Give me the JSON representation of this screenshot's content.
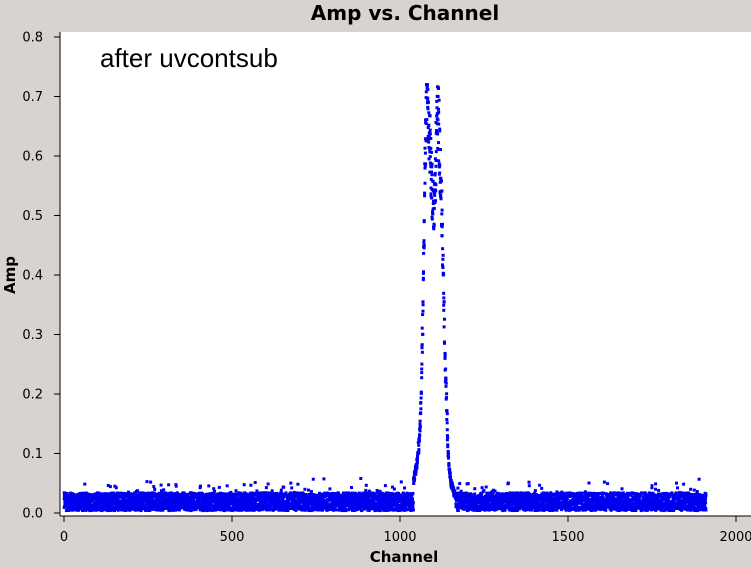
{
  "chart_data": {
    "type": "scatter",
    "title": "Amp vs. Channel",
    "xlabel": "Channel",
    "ylabel": "Amp",
    "annotation": "after uvcontsub",
    "xlim": [
      -10,
      2000
    ],
    "ylim": [
      -0.005,
      0.81
    ],
    "xticks": [
      0,
      500,
      1000,
      1500,
      2000
    ],
    "yticks": [
      0.0,
      0.1,
      0.2,
      0.3,
      0.4,
      0.5,
      0.6,
      0.7,
      0.8
    ],
    "xtick_labels": [
      "0",
      "500",
      "1000",
      "1500",
      "2000"
    ],
    "ytick_labels": [
      "0.0",
      "0.1",
      "0.2",
      "0.3",
      "0.4",
      "0.5",
      "0.6",
      "0.7",
      "0.8"
    ],
    "grid": false,
    "marker_color": "#0000ee",
    "series": [
      {
        "x": [
          0,
          1910
        ],
        "description_values": "noise floor",
        "noise_range": [
          0.003,
          0.06
        ],
        "peak_channels": [
          [
            1040,
            0.05
          ],
          [
            1050,
            0.08
          ],
          [
            1058,
            0.13
          ],
          [
            1063,
            0.2
          ],
          [
            1066,
            0.3
          ],
          [
            1069,
            0.38
          ],
          [
            1071,
            0.45
          ],
          [
            1073,
            0.55
          ],
          [
            1075,
            0.62
          ],
          [
            1077,
            0.66
          ],
          [
            1079,
            0.7
          ],
          [
            1081,
            0.715
          ],
          [
            1083,
            0.69
          ],
          [
            1085,
            0.67
          ],
          [
            1087,
            0.65
          ],
          [
            1089,
            0.63
          ],
          [
            1091,
            0.6
          ],
          [
            1093,
            0.57
          ],
          [
            1095,
            0.56
          ],
          [
            1097,
            0.55
          ],
          [
            1099,
            0.54
          ],
          [
            1101,
            0.52
          ],
          [
            1103,
            0.55
          ],
          [
            1105,
            0.58
          ],
          [
            1107,
            0.62
          ],
          [
            1109,
            0.65
          ],
          [
            1111,
            0.67
          ],
          [
            1113,
            0.68
          ],
          [
            1115,
            0.67
          ],
          [
            1117,
            0.64
          ],
          [
            1119,
            0.6
          ],
          [
            1121,
            0.56
          ],
          [
            1123,
            0.53
          ],
          [
            1125,
            0.49
          ],
          [
            1127,
            0.44
          ],
          [
            1129,
            0.39
          ],
          [
            1131,
            0.33
          ],
          [
            1133,
            0.28
          ],
          [
            1135,
            0.24
          ],
          [
            1137,
            0.2
          ],
          [
            1139,
            0.17
          ],
          [
            1141,
            0.13
          ],
          [
            1143,
            0.1
          ],
          [
            1145,
            0.08
          ],
          [
            1148,
            0.06
          ],
          [
            1152,
            0.045
          ],
          [
            1158,
            0.035
          ],
          [
            1165,
            0.025
          ]
        ]
      }
    ]
  }
}
